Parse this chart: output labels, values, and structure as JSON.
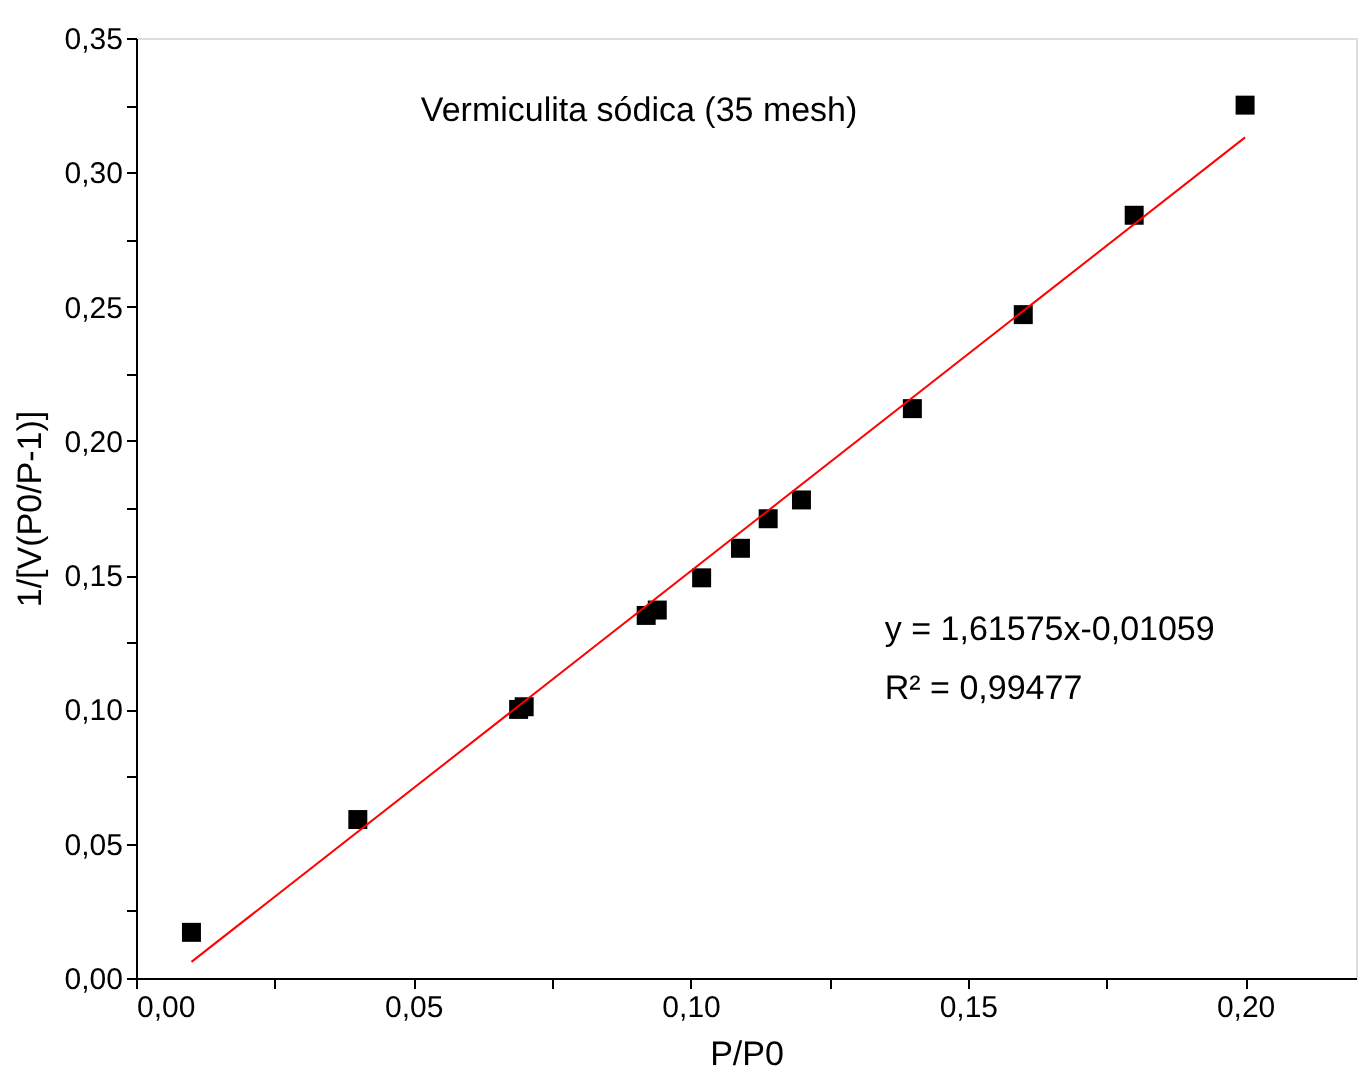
{
  "chart_data": {
    "type": "scatter",
    "xlabel": "P/P0",
    "ylabel": "1/[V(P0/P-1)]",
    "annotations": [
      "Vermiculita sódica (35 mesh)",
      "y = 1,61575x-0,01059",
      "R² = 0,99477"
    ],
    "x": [
      0.01,
      0.04,
      0.069,
      0.07,
      0.092,
      0.094,
      0.102,
      0.109,
      0.114,
      0.12,
      0.14,
      0.16,
      0.18,
      0.2
    ],
    "series": [
      {
        "color": "#000000",
        "marker": "square",
        "values": [
          0.017,
          0.059,
          0.1,
          0.101,
          0.135,
          0.137,
          0.149,
          0.16,
          0.171,
          0.178,
          0.212,
          0.247,
          0.284,
          0.325
        ]
      },
      {
        "type": "line",
        "color": "#ff0000",
        "marker": "none",
        "line_style": "solid",
        "x": [
          0.01,
          0.2
        ],
        "values": [
          0.006,
          0.313
        ]
      }
    ],
    "xlim": [
      0,
      0.22
    ],
    "ylim": [
      0,
      0.35
    ],
    "xticks": [
      {
        "value": 0,
        "label": "0,00"
      },
      {
        "value": 0.025,
        "label": null
      },
      {
        "value": 0.05,
        "label": "0,05"
      },
      {
        "value": 0.075,
        "label": null
      },
      {
        "value": 0.1,
        "label": "0,10"
      },
      {
        "value": 0.125,
        "label": null
      },
      {
        "value": 0.15,
        "label": "0,15"
      },
      {
        "value": 0.175,
        "label": null
      },
      {
        "value": 0.2,
        "label": "0,20"
      }
    ],
    "yticks": [
      {
        "value": 0,
        "label": "0,00"
      },
      {
        "value": 0.025,
        "label": null
      },
      {
        "value": 0.05,
        "label": "0,05"
      },
      {
        "value": 0.075,
        "label": null
      },
      {
        "value": 0.1,
        "label": "0,10"
      },
      {
        "value": 0.125,
        "label": null
      },
      {
        "value": 0.15,
        "label": "0,15"
      },
      {
        "value": 0.175,
        "label": null
      },
      {
        "value": 0.2,
        "label": "0,20"
      },
      {
        "value": 0.225,
        "label": null
      },
      {
        "value": 0.25,
        "label": "0,25"
      },
      {
        "value": 0.275,
        "label": null
      },
      {
        "value": 0.3,
        "label": "0,30"
      },
      {
        "value": 0.325,
        "label": null
      },
      {
        "value": 0.35,
        "label": "0,35"
      }
    ],
    "grid": false
  }
}
